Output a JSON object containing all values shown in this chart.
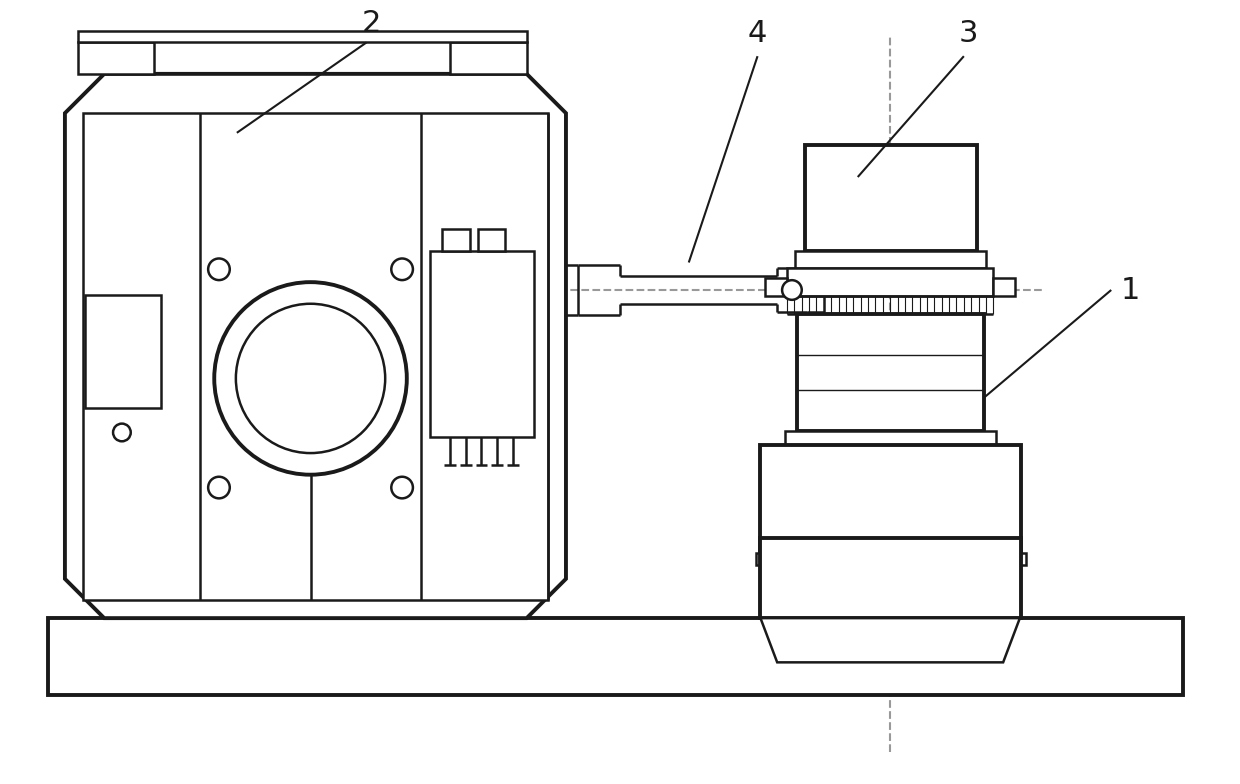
{
  "bg_color": "#ffffff",
  "line_color": "#1a1a1a",
  "dashed_color": "#999999",
  "lw": 1.8,
  "lw_thick": 2.8,
  "lw_thin": 1.0,
  "fig_width": 12.4,
  "fig_height": 7.84
}
